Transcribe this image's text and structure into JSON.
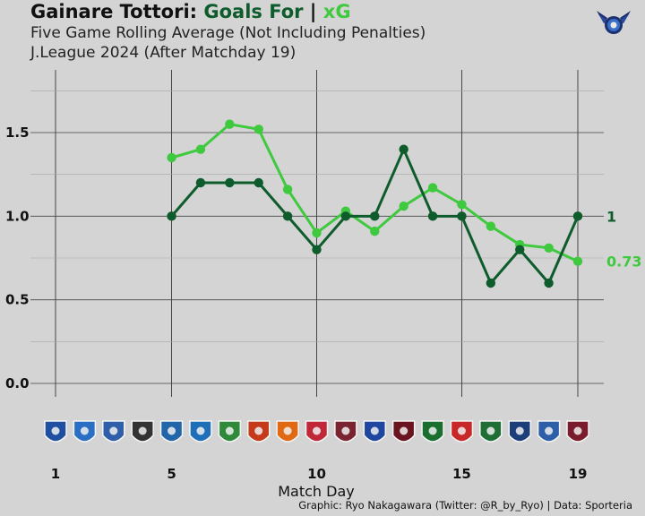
{
  "header": {
    "title_team": "Gainare Tottori:",
    "title_goals": "Goals For",
    "title_sep": " | ",
    "title_xg": "xG",
    "subtitle1": "Five Game Rolling Average (Not Including Penalties)",
    "subtitle2": "J.League 2024 (After Matchday 19)"
  },
  "footer": {
    "credit": "Graphic: Ryo Nakagawara (Twitter: @R_by_Ryo) | Data: Sporteria"
  },
  "colors": {
    "goals": "#0e5c2c",
    "xg": "#3ec93e",
    "background": "#d4d4d4",
    "grid": "#9a9a9a"
  },
  "icons": {
    "brand_logo": "eagle-emblem-icon",
    "opponent_badges": "club-crest-icon"
  },
  "chart_data": {
    "type": "line",
    "xlabel": "Match Day",
    "ylabel": "",
    "xlim": [
      1,
      19
    ],
    "ylim": [
      0,
      1.5
    ],
    "x_ticks": [
      "1",
      "5",
      "10",
      "15",
      "19"
    ],
    "y_ticks": [
      "0.0",
      "0.5",
      "1.0",
      "1.5"
    ],
    "grid": true,
    "series": [
      {
        "name": "Goals For",
        "color": "#0e5c2c",
        "x": [
          5,
          6,
          7,
          8,
          9,
          10,
          11,
          12,
          13,
          14,
          15,
          16,
          17,
          18,
          19
        ],
        "values": [
          1.0,
          1.2,
          1.2,
          1.2,
          1.0,
          0.8,
          1.0,
          1.0,
          1.4,
          1.0,
          1.0,
          0.6,
          0.8,
          0.6,
          1.0
        ],
        "end_label": "1"
      },
      {
        "name": "xG",
        "color": "#3ec93e",
        "x": [
          5,
          6,
          7,
          8,
          9,
          10,
          11,
          12,
          13,
          14,
          15,
          16,
          17,
          18,
          19
        ],
        "values": [
          1.35,
          1.4,
          1.55,
          1.52,
          1.16,
          0.9,
          1.03,
          0.91,
          1.06,
          1.17,
          1.07,
          0.94,
          0.83,
          0.81,
          0.73
        ],
        "end_label": "0.73"
      }
    ],
    "opponent_badge_colors": [
      "#1e4fa0",
      "#2a6fc4",
      "#2f5fa8",
      "#333333",
      "#2266aa",
      "#1e6fb8",
      "#2e8a3a",
      "#c43a1a",
      "#e06a14",
      "#c0283a",
      "#7a2430",
      "#1f47a0",
      "#6a1420",
      "#1a6e2e",
      "#c82828",
      "#1f6e36",
      "#1c3f7a",
      "#2d5ea8",
      "#7a1c2c"
    ]
  }
}
